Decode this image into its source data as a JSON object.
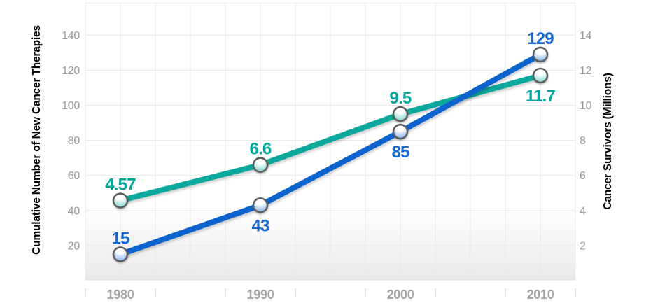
{
  "chart_data": {
    "type": "line",
    "title": "",
    "categories": [
      "1980",
      "1990",
      "2000",
      "2010"
    ],
    "series": [
      {
        "name": "Cumulative Number of New Cancer Therapies",
        "axis": "left",
        "values": [
          15,
          43,
          85,
          129
        ],
        "data_labels": [
          "15",
          "43",
          "85",
          "129"
        ],
        "label_positions": [
          "above",
          "below",
          "below",
          "above"
        ],
        "line_color": "#0f63cd",
        "label_color": "#1568d2",
        "marker_fill": "#92b9ee"
      },
      {
        "name": "Cancer Survivors (Millions)",
        "axis": "right",
        "values": [
          4.57,
          6.6,
          9.5,
          11.7
        ],
        "data_labels": [
          "4.57",
          "6.6",
          "9.5",
          "11.7"
        ],
        "label_positions": [
          "above",
          "above",
          "above",
          "below"
        ],
        "line_color": "#0ca89c",
        "label_color": "#00a69b",
        "marker_fill": "#8adcd4"
      }
    ],
    "left_axis": {
      "title": "Cumulative Number of New Cancer Therapies",
      "ticks": [
        20,
        40,
        60,
        80,
        100,
        120,
        140
      ],
      "range": [
        0,
        160
      ],
      "title_color": "#1568d2",
      "tick_color": "#999999"
    },
    "right_axis": {
      "title": "Cancer Survivors (Millions)",
      "ticks": [
        2,
        4,
        6,
        8,
        10,
        12,
        14
      ],
      "range": [
        0,
        16
      ],
      "title_color": "#00a69b",
      "tick_color": "#999999",
      "scale_to_left": 10
    },
    "x_axis": {
      "labels": [
        "1980",
        "1990",
        "2000",
        "2010"
      ],
      "label_color": "#a6a6a6",
      "tick_color": "#c9c9c9"
    },
    "grid": {
      "show": true,
      "color": "#e8e8e8"
    },
    "legend": "none",
    "marker_ring_color": "#5f5f5f"
  }
}
